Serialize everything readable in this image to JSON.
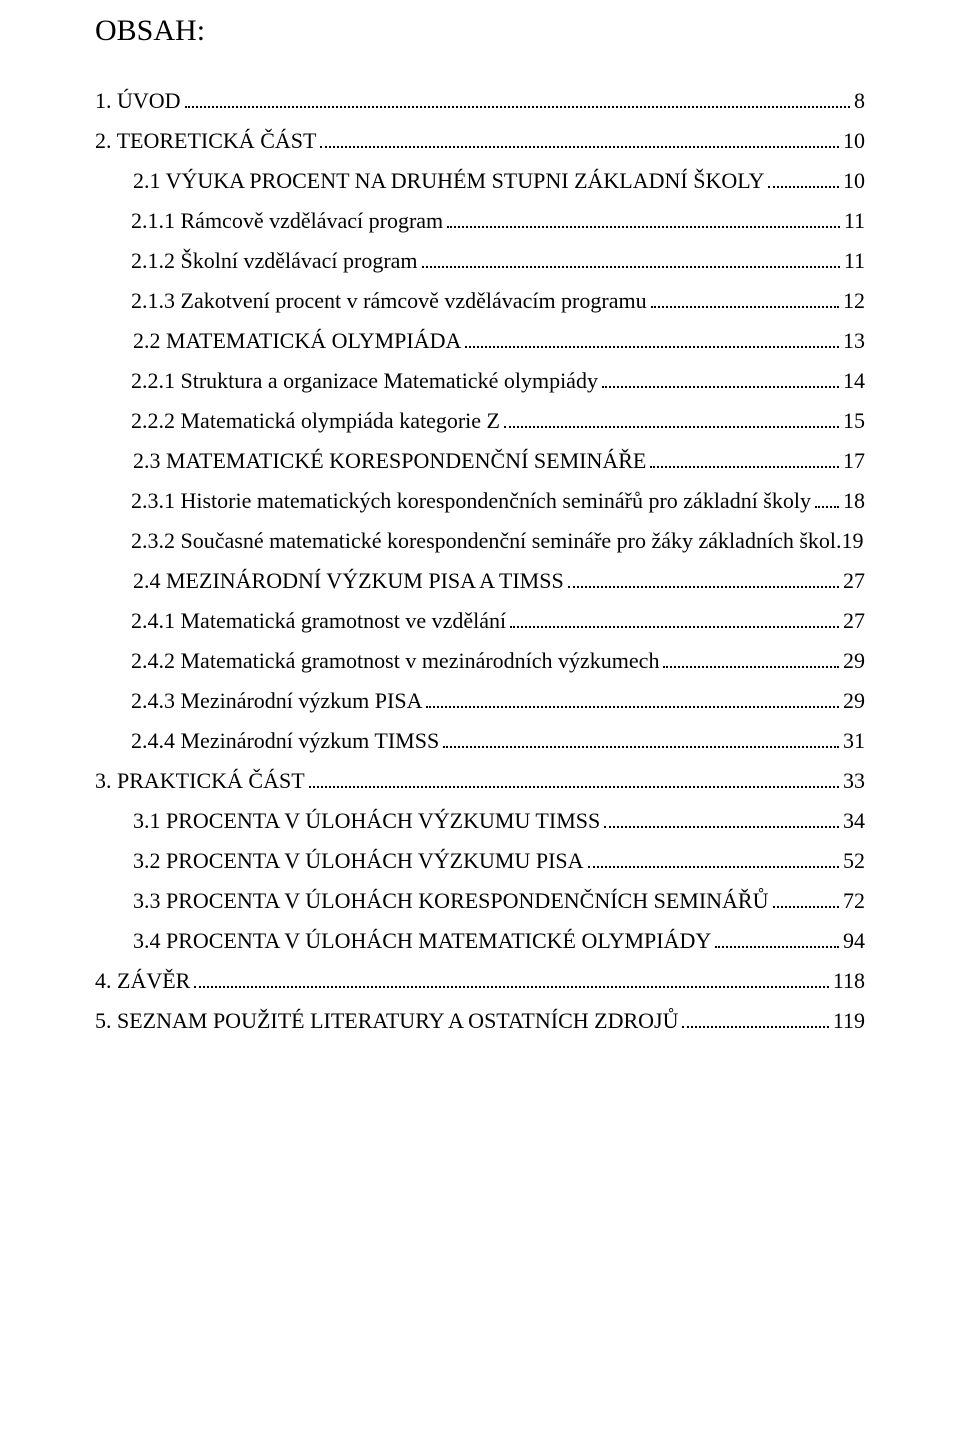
{
  "title": "OBSAH:",
  "typography": {
    "font_family": "Times New Roman",
    "title_fontsize": 30,
    "line_fontsize": 22,
    "text_color": "#000000",
    "background_color": "#ffffff"
  },
  "toc": [
    {
      "label": "1.    ÚVOD",
      "page": "8",
      "indent": "indent-0"
    },
    {
      "label": "2.    TEORETICKÁ ČÁST",
      "page": "10",
      "indent": "indent-0"
    },
    {
      "label": "2.1 VÝUKA PROCENT NA DRUHÉM STUPNI ZÁKLADNÍ ŠKOLY",
      "page": "10",
      "indent": "indent-1"
    },
    {
      "label": "2.1.1 Rámcově vzdělávací program",
      "page": "11",
      "indent": "indent-2"
    },
    {
      "label": "2.1.2 Školní vzdělávací program",
      "page": "11",
      "indent": "indent-2"
    },
    {
      "label": "2.1.3 Zakotvení procent v rámcově vzdělávacím programu",
      "page": "12",
      "indent": "indent-2"
    },
    {
      "label": "2.2 MATEMATICKÁ OLYMPIÁDA",
      "page": "13",
      "indent": "indent-1"
    },
    {
      "label": "2.2.1 Struktura a organizace Matematické olympiády",
      "page": "14",
      "indent": "indent-2"
    },
    {
      "label": "2.2.2 Matematická olympiáda kategorie Z",
      "page": "15",
      "indent": "indent-2"
    },
    {
      "label": "2.3 MATEMATICKÉ KORESPONDENČNÍ SEMINÁŘE",
      "page": "17",
      "indent": "indent-1"
    },
    {
      "label": "2.3.1 Historie matematických korespondenčních seminářů pro základní školy",
      "page": "18",
      "indent": "indent-2"
    },
    {
      "label": "2.3.2 Současné matematické korespondenční semináře pro žáky základních škol.",
      "page": "19",
      "indent": "indent-2",
      "nodots": true
    },
    {
      "label": "2.4 MEZINÁRODNÍ VÝZKUM PISA A TIMSS",
      "page": "27",
      "indent": "indent-1"
    },
    {
      "label": "2.4.1 Matematická gramotnost ve vzdělání",
      "page": "27",
      "indent": "indent-2"
    },
    {
      "label": "2.4.2 Matematická gramotnost v mezinárodních výzkumech",
      "page": "29",
      "indent": "indent-2"
    },
    {
      "label": "2.4.3 Mezinárodní výzkum PISA",
      "page": "29",
      "indent": "indent-2"
    },
    {
      "label": "2.4.4 Mezinárodní výzkum TIMSS",
      "page": "31",
      "indent": "indent-2"
    },
    {
      "label": "3.    PRAKTICKÁ ČÁST",
      "page": "33",
      "indent": "indent-0"
    },
    {
      "label": "3.1    PROCENTA V ÚLOHÁCH VÝZKUMU TIMSS",
      "page": "34",
      "indent": "indent-1"
    },
    {
      "label": "3.2    PROCENTA V ÚLOHÁCH VÝZKUMU PISA",
      "page": "52",
      "indent": "indent-1"
    },
    {
      "label": "3.3    PROCENTA V ÚLOHÁCH KORESPONDENČNÍCH SEMINÁŘŮ",
      "page": "72",
      "indent": "indent-1"
    },
    {
      "label": "3.4    PROCENTA V ÚLOHÁCH MATEMATICKÉ OLYMPIÁDY",
      "page": "94",
      "indent": "indent-1"
    },
    {
      "label": "4.    ZÁVĚR",
      "page": "118",
      "indent": "indent-0"
    },
    {
      "label": "5.    SEZNAM POUŽITÉ LITERATURY A OSTATNÍCH ZDROJŮ",
      "page": "119",
      "indent": "indent-0"
    }
  ]
}
